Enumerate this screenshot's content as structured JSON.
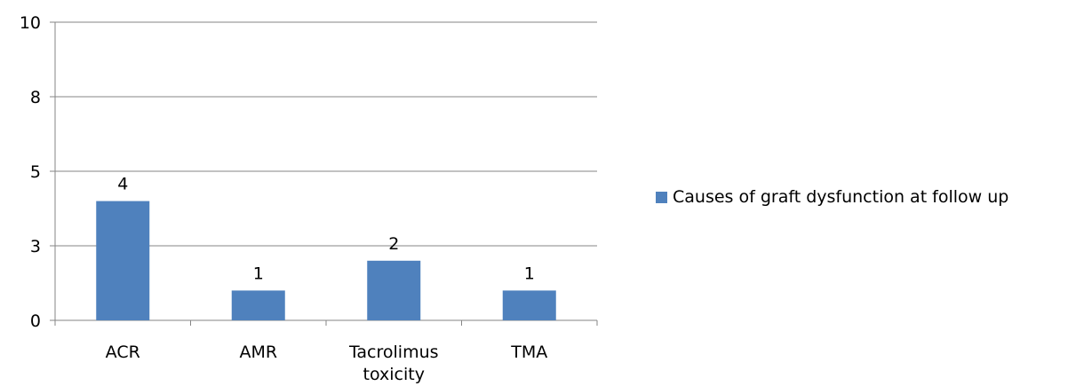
{
  "chart_data": {
    "type": "bar",
    "categories": [
      "ACR",
      "AMR",
      "Tacrolimus toxicity",
      "TMA"
    ],
    "category_lines": [
      [
        "ACR"
      ],
      [
        "AMR"
      ],
      [
        "Tacrolimus",
        "toxicity"
      ],
      [
        "TMA"
      ]
    ],
    "series": [
      {
        "name": "Causes of graft dysfunction at follow up",
        "values": [
          4,
          1,
          2,
          1
        ],
        "color": "#4f81bd"
      }
    ],
    "data_labels": [
      "4",
      "1",
      "2",
      "1"
    ],
    "ylim": [
      0,
      10
    ],
    "yticks": [
      0,
      2.5,
      5,
      7.5,
      10
    ],
    "ytick_labels": [
      "0",
      "3",
      "5",
      "8",
      "10"
    ],
    "gridlines": true,
    "legend_position": "right",
    "title": "",
    "xlabel": "",
    "ylabel": ""
  }
}
